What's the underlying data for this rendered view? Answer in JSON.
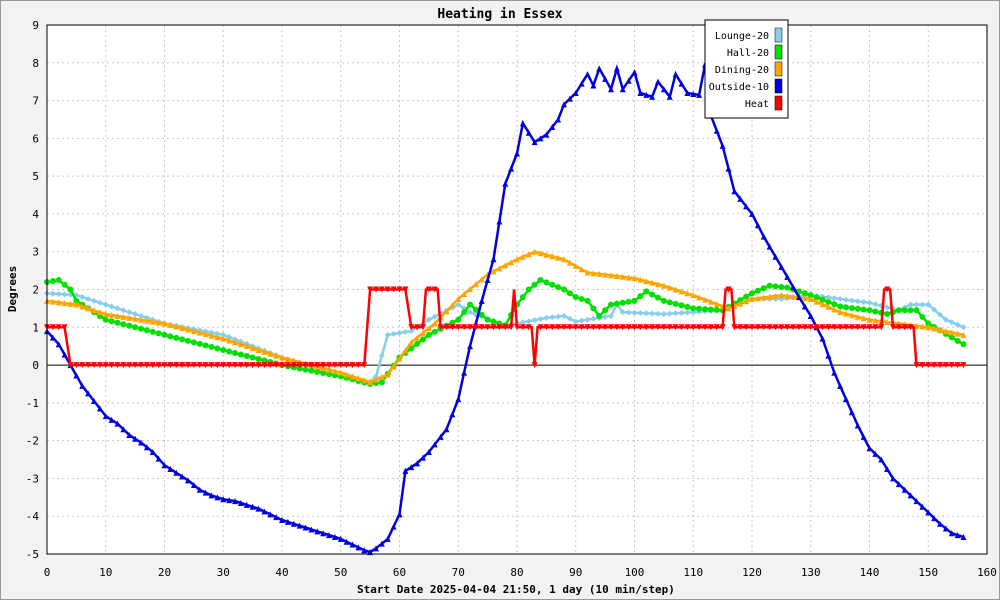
{
  "chart_data": {
    "type": "line",
    "title": "Heating in Essex",
    "xlabel": "Start Date 2025-04-04 21:50, 1 day (10 min/step)",
    "ylabel": "Degrees",
    "xlim": [
      0,
      160
    ],
    "ylim": [
      -5,
      9
    ],
    "x_ticks": [
      0,
      10,
      20,
      30,
      40,
      50,
      60,
      70,
      80,
      90,
      100,
      110,
      120,
      130,
      140,
      150,
      160
    ],
    "y_ticks": [
      -5,
      -4,
      -3,
      -2,
      -1,
      0,
      1,
      2,
      3,
      4,
      5,
      6,
      7,
      8,
      9
    ],
    "grid": true,
    "legend_position": "top-right",
    "series": [
      {
        "name": "Lounge-20",
        "color": "#87ceeb",
        "marker": "diamond",
        "points": [
          [
            0,
            1.9
          ],
          [
            5,
            1.85
          ],
          [
            10,
            1.6
          ],
          [
            20,
            1.1
          ],
          [
            30,
            0.8
          ],
          [
            40,
            0.2
          ],
          [
            50,
            -0.3
          ],
          [
            55,
            -0.45
          ],
          [
            56,
            -0.3
          ],
          [
            58,
            0.8
          ],
          [
            62,
            0.9
          ],
          [
            65,
            1.2
          ],
          [
            70,
            1.6
          ],
          [
            72,
            1.4
          ],
          [
            78,
            1.05
          ],
          [
            80,
            1.1
          ],
          [
            85,
            1.25
          ],
          [
            88,
            1.3
          ],
          [
            90,
            1.15
          ],
          [
            92,
            1.2
          ],
          [
            96,
            1.3
          ],
          [
            97,
            1.6
          ],
          [
            98,
            1.4
          ],
          [
            105,
            1.35
          ],
          [
            110,
            1.4
          ],
          [
            115,
            1.45
          ],
          [
            120,
            1.75
          ],
          [
            125,
            1.75
          ],
          [
            130,
            1.85
          ],
          [
            135,
            1.75
          ],
          [
            140,
            1.65
          ],
          [
            145,
            1.45
          ],
          [
            147,
            1.6
          ],
          [
            150,
            1.6
          ],
          [
            153,
            1.2
          ],
          [
            156,
            1.0
          ]
        ]
      },
      {
        "name": "Hall-20",
        "color": "#00e000",
        "marker": "circle",
        "points": [
          [
            0,
            2.2
          ],
          [
            2,
            2.25
          ],
          [
            4,
            2.0
          ],
          [
            5,
            1.7
          ],
          [
            10,
            1.2
          ],
          [
            20,
            0.8
          ],
          [
            30,
            0.4
          ],
          [
            40,
            0.0
          ],
          [
            50,
            -0.3
          ],
          [
            55,
            -0.5
          ],
          [
            57,
            -0.45
          ],
          [
            60,
            0.2
          ],
          [
            65,
            0.8
          ],
          [
            70,
            1.2
          ],
          [
            72,
            1.6
          ],
          [
            75,
            1.2
          ],
          [
            78,
            1.05
          ],
          [
            80,
            1.6
          ],
          [
            82,
            2.0
          ],
          [
            84,
            2.25
          ],
          [
            88,
            2.0
          ],
          [
            90,
            1.8
          ],
          [
            92,
            1.7
          ],
          [
            94,
            1.3
          ],
          [
            96,
            1.6
          ],
          [
            100,
            1.7
          ],
          [
            102,
            1.95
          ],
          [
            105,
            1.7
          ],
          [
            110,
            1.5
          ],
          [
            115,
            1.45
          ],
          [
            120,
            1.9
          ],
          [
            123,
            2.1
          ],
          [
            126,
            2.05
          ],
          [
            130,
            1.85
          ],
          [
            135,
            1.55
          ],
          [
            140,
            1.45
          ],
          [
            143,
            1.35
          ],
          [
            145,
            1.45
          ],
          [
            148,
            1.45
          ],
          [
            150,
            1.1
          ],
          [
            156,
            0.55
          ]
        ]
      },
      {
        "name": "Dining-20",
        "color": "#ffa500",
        "marker": "triangle",
        "points": [
          [
            0,
            1.7
          ],
          [
            5,
            1.6
          ],
          [
            10,
            1.35
          ],
          [
            20,
            1.1
          ],
          [
            30,
            0.7
          ],
          [
            40,
            0.2
          ],
          [
            50,
            -0.2
          ],
          [
            55,
            -0.45
          ],
          [
            58,
            -0.25
          ],
          [
            62,
            0.6
          ],
          [
            66,
            1.1
          ],
          [
            70,
            1.75
          ],
          [
            75,
            2.4
          ],
          [
            80,
            2.8
          ],
          [
            83,
            3.0
          ],
          [
            88,
            2.8
          ],
          [
            92,
            2.45
          ],
          [
            100,
            2.3
          ],
          [
            105,
            2.1
          ],
          [
            110,
            1.85
          ],
          [
            116,
            1.5
          ],
          [
            120,
            1.75
          ],
          [
            125,
            1.85
          ],
          [
            130,
            1.75
          ],
          [
            135,
            1.4
          ],
          [
            140,
            1.2
          ],
          [
            145,
            1.1
          ],
          [
            150,
            1.0
          ],
          [
            156,
            0.8
          ]
        ]
      },
      {
        "name": "Outside-10",
        "color": "#0000e0",
        "marker": "triangle-up",
        "points": [
          [
            0,
            0.9
          ],
          [
            2,
            0.55
          ],
          [
            4,
            0.0
          ],
          [
            6,
            -0.55
          ],
          [
            8,
            -0.95
          ],
          [
            10,
            -1.35
          ],
          [
            12,
            -1.55
          ],
          [
            14,
            -1.85
          ],
          [
            16,
            -2.05
          ],
          [
            18,
            -2.3
          ],
          [
            20,
            -2.65
          ],
          [
            22,
            -2.85
          ],
          [
            24,
            -3.05
          ],
          [
            26,
            -3.3
          ],
          [
            28,
            -3.45
          ],
          [
            30,
            -3.55
          ],
          [
            32,
            -3.6
          ],
          [
            34,
            -3.7
          ],
          [
            36,
            -3.8
          ],
          [
            38,
            -3.95
          ],
          [
            40,
            -4.1
          ],
          [
            42,
            -4.2
          ],
          [
            44,
            -4.3
          ],
          [
            46,
            -4.4
          ],
          [
            48,
            -4.5
          ],
          [
            50,
            -4.6
          ],
          [
            52,
            -4.75
          ],
          [
            54,
            -4.9
          ],
          [
            55,
            -4.95
          ],
          [
            56,
            -4.85
          ],
          [
            58,
            -4.6
          ],
          [
            60,
            -3.95
          ],
          [
            61,
            -2.8
          ],
          [
            63,
            -2.6
          ],
          [
            65,
            -2.3
          ],
          [
            67,
            -1.9
          ],
          [
            68,
            -1.7
          ],
          [
            70,
            -0.9
          ],
          [
            72,
            0.5
          ],
          [
            74,
            1.7
          ],
          [
            76,
            2.8
          ],
          [
            77,
            3.8
          ],
          [
            78,
            4.8
          ],
          [
            80,
            5.6
          ],
          [
            81,
            6.4
          ],
          [
            83,
            5.9
          ],
          [
            85,
            6.1
          ],
          [
            87,
            6.5
          ],
          [
            88,
            6.9
          ],
          [
            90,
            7.2
          ],
          [
            92,
            7.7
          ],
          [
            93,
            7.4
          ],
          [
            94,
            7.85
          ],
          [
            96,
            7.3
          ],
          [
            97,
            7.85
          ],
          [
            98,
            7.3
          ],
          [
            100,
            7.75
          ],
          [
            101,
            7.2
          ],
          [
            103,
            7.1
          ],
          [
            104,
            7.5
          ],
          [
            106,
            7.1
          ],
          [
            107,
            7.7
          ],
          [
            109,
            7.2
          ],
          [
            111,
            7.15
          ],
          [
            112,
            7.95
          ],
          [
            113,
            6.6
          ],
          [
            115,
            5.8
          ],
          [
            117,
            4.6
          ],
          [
            120,
            4.0
          ],
          [
            122,
            3.4
          ],
          [
            125,
            2.6
          ],
          [
            128,
            1.8
          ],
          [
            130,
            1.3
          ],
          [
            132,
            0.7
          ],
          [
            134,
            -0.2
          ],
          [
            136,
            -0.9
          ],
          [
            138,
            -1.6
          ],
          [
            140,
            -2.2
          ],
          [
            142,
            -2.5
          ],
          [
            144,
            -3.0
          ],
          [
            146,
            -3.3
          ],
          [
            148,
            -3.6
          ],
          [
            150,
            -3.9
          ],
          [
            152,
            -4.2
          ],
          [
            154,
            -4.45
          ],
          [
            156,
            -4.55
          ]
        ]
      },
      {
        "name": "Heat",
        "color": "#ff0000",
        "marker": "triangle-down",
        "points": [
          [
            0,
            1.0
          ],
          [
            3,
            1.0
          ],
          [
            4,
            0.0
          ],
          [
            54,
            0.0
          ],
          [
            55,
            2.0
          ],
          [
            61,
            2.0
          ],
          [
            62,
            1.0
          ],
          [
            64,
            1.0
          ],
          [
            64.5,
            2.0
          ],
          [
            66.5,
            2.0
          ],
          [
            67,
            1.0
          ],
          [
            79,
            1.0
          ],
          [
            79.5,
            2.0
          ],
          [
            80,
            1.0
          ],
          [
            82.5,
            1.0
          ],
          [
            83,
            0.0
          ],
          [
            83.5,
            1.0
          ],
          [
            115,
            1.0
          ],
          [
            115.5,
            2.0
          ],
          [
            116.5,
            2.0
          ],
          [
            117,
            1.0
          ],
          [
            142,
            1.0
          ],
          [
            142.5,
            2.0
          ],
          [
            143.5,
            2.0
          ],
          [
            144,
            1.0
          ],
          [
            147.5,
            1.0
          ],
          [
            148,
            0.0
          ],
          [
            156,
            0.0
          ]
        ]
      }
    ]
  },
  "colors": {
    "background": "#f2f2f2",
    "plot_background": "#ffffff",
    "grid": "#c8c8c8",
    "zero_line": "#000000"
  }
}
